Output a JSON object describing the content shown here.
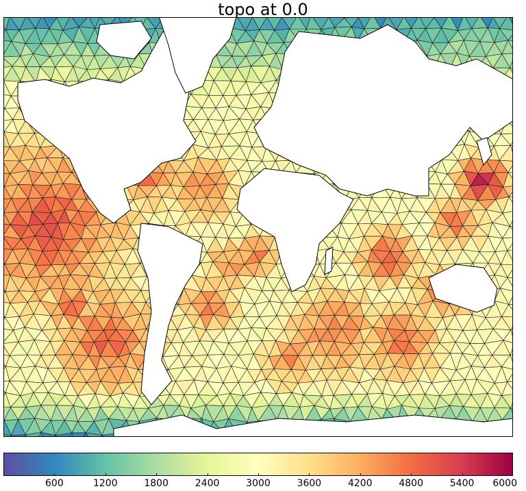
{
  "title": "topo at 0.0",
  "colorbar": {
    "min": 0,
    "max": 6000,
    "ticks": [
      "600",
      "1200",
      "1800",
      "2400",
      "3000",
      "3600",
      "4200",
      "4800",
      "5400",
      "6000"
    ],
    "colormap": "Spectral_r",
    "stops": [
      "#5e4fa2",
      "#3288bd",
      "#66c2a5",
      "#abdda4",
      "#e6f598",
      "#ffffbf",
      "#fee08b",
      "#fdae61",
      "#f46d43",
      "#d53e4f",
      "#9e0142"
    ]
  },
  "map": {
    "projection": "mercator",
    "variable": "topo",
    "mesh": "triangular",
    "land_color": "#ffffff",
    "coastline_color": "#000000"
  }
}
